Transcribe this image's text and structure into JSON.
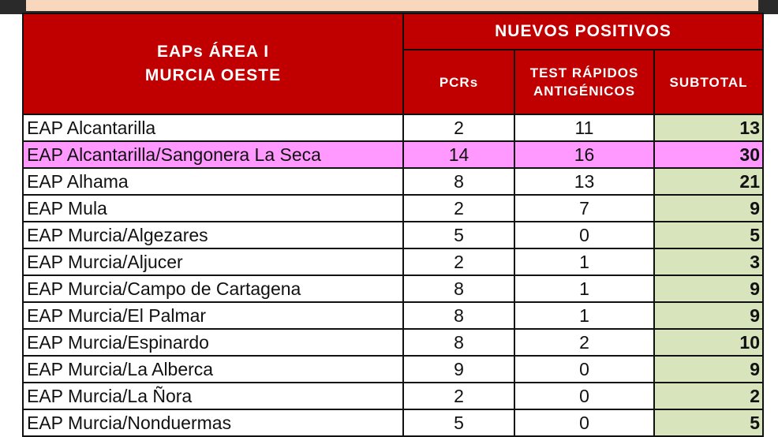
{
  "header": {
    "area_line1": "EAPs ÁREA I",
    "area_line2": "MURCIA OESTE",
    "group": "NUEVOS POSITIVOS",
    "col_pcr": "PCRs",
    "col_test_line1": "TEST RÁPIDOS",
    "col_test_line2": "ANTIGÉNICOS",
    "col_subtotal": "SUBTOTAL"
  },
  "colors": {
    "header_bg": "#c00000",
    "subtotal_bg": "#d8e4bc",
    "highlight_row_bg": "#ff99ff",
    "top_band": "#f9d7bd"
  },
  "rows": [
    {
      "name": "EAP Alcantarilla",
      "pcr": "2",
      "test": "11",
      "subtotal": "13",
      "highlight": false
    },
    {
      "name": "EAP Alcantarilla/Sangonera La Seca",
      "pcr": "14",
      "test": "16",
      "subtotal": "30",
      "highlight": true
    },
    {
      "name": "EAP Alhama",
      "pcr": "8",
      "test": "13",
      "subtotal": "21",
      "highlight": false
    },
    {
      "name": "EAP Mula",
      "pcr": "2",
      "test": "7",
      "subtotal": "9",
      "highlight": false
    },
    {
      "name": "EAP Murcia/Algezares",
      "pcr": "5",
      "test": "0",
      "subtotal": "5",
      "highlight": false
    },
    {
      "name": "EAP Murcia/Aljucer",
      "pcr": "2",
      "test": "1",
      "subtotal": "3",
      "highlight": false
    },
    {
      "name": "EAP Murcia/Campo de Cartagena",
      "pcr": "8",
      "test": "1",
      "subtotal": "9",
      "highlight": false
    },
    {
      "name": "EAP Murcia/El Palmar",
      "pcr": "8",
      "test": "1",
      "subtotal": "9",
      "highlight": false
    },
    {
      "name": "EAP Murcia/Espinardo",
      "pcr": "8",
      "test": "2",
      "subtotal": "10",
      "highlight": false
    },
    {
      "name": "EAP Murcia/La Alberca",
      "pcr": "9",
      "test": "0",
      "subtotal": "9",
      "highlight": false
    },
    {
      "name": "EAP Murcia/La Ñora",
      "pcr": "2",
      "test": "0",
      "subtotal": "2",
      "highlight": false
    },
    {
      "name": "EAP Murcia/Nonduermas",
      "pcr": "5",
      "test": "0",
      "subtotal": "5",
      "highlight": false
    }
  ]
}
